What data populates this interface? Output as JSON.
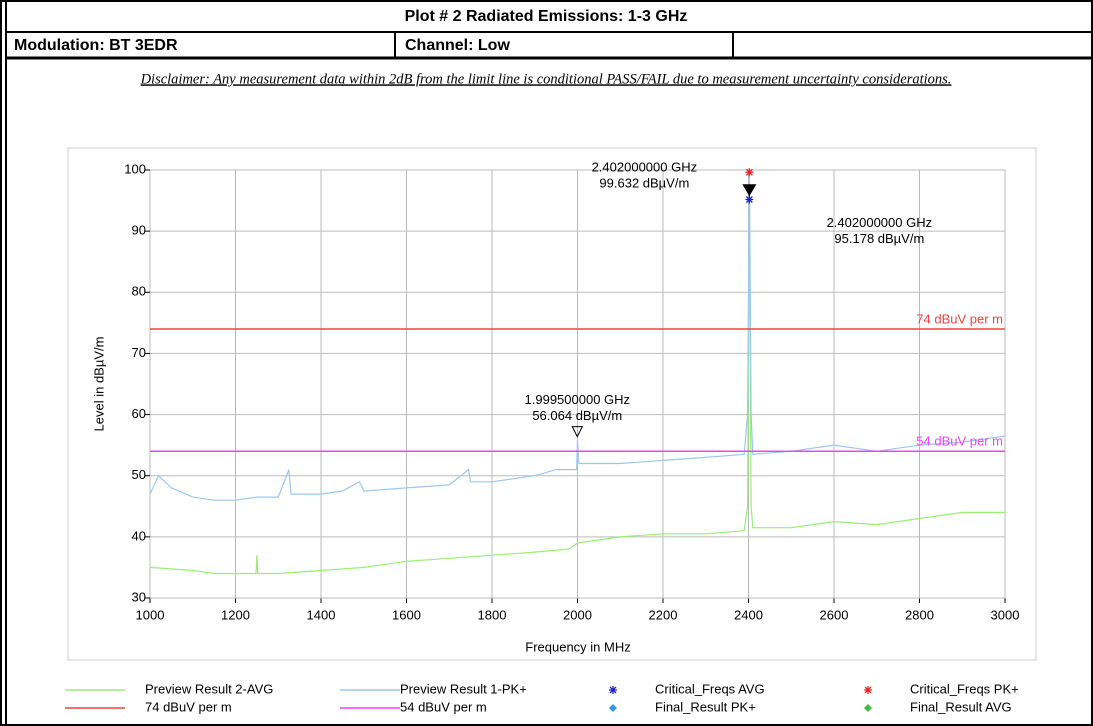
{
  "header": {
    "title": "Plot # 2 Radiated Emissions: 1-3 GHz",
    "modulation": "Modulation: BT 3EDR",
    "channel": "Channel: Low",
    "disclaimer": "Disclaimer: Any measurement data within 2dB from the limit line is conditional PASS/FAIL due to measurement uncertainty considerations."
  },
  "chart_data": {
    "type": "line",
    "x_label": "Frequency in MHz",
    "y_label": "Level in dBµV/m",
    "xlim": [
      1000,
      3000
    ],
    "xticks": [
      1000,
      1200,
      1400,
      1600,
      1800,
      2000,
      2200,
      2400,
      2600,
      2800,
      3000
    ],
    "ylim": [
      30,
      100
    ],
    "yticks": [
      30,
      40,
      50,
      60,
      70,
      80,
      90,
      100
    ],
    "grid": true,
    "legend": "bottom",
    "series": [
      {
        "name": "Preview Result 2-AVG",
        "color": "#99ee77",
        "kind": "line",
        "x": [
          1000,
          1100,
          1150,
          1200,
          1248,
          1250,
          1252,
          1300,
          1400,
          1500,
          1600,
          1700,
          1800,
          1900,
          1980,
          2000,
          2100,
          2200,
          2300,
          2390,
          2398,
          2402,
          2406,
          2410,
          2500,
          2600,
          2700,
          2800,
          2900,
          3000
        ],
        "values": [
          35,
          34.5,
          34,
          34,
          34,
          37,
          34,
          34,
          34.5,
          35,
          36,
          36.5,
          37,
          37.5,
          38,
          39,
          40,
          40.5,
          40.5,
          41,
          45,
          95.2,
          45,
          41.5,
          41.5,
          42.5,
          42,
          43,
          44,
          44
        ]
      },
      {
        "name": "Preview Result 1-PK+",
        "color": "#9cc8ee",
        "kind": "line",
        "x": [
          1000,
          1020,
          1050,
          1100,
          1150,
          1200,
          1250,
          1300,
          1325,
          1330,
          1400,
          1450,
          1490,
          1500,
          1600,
          1700,
          1745,
          1750,
          1800,
          1900,
          1950,
          1998,
          2000,
          2003,
          2100,
          2200,
          2300,
          2390,
          2398,
          2402,
          2406,
          2410,
          2500,
          2600,
          2700,
          2750,
          2800,
          2900,
          3000
        ],
        "values": [
          47,
          50,
          48,
          46.5,
          46,
          46,
          46.5,
          46.5,
          51,
          47,
          47,
          47.5,
          49,
          47.5,
          48,
          48.5,
          51,
          49,
          49,
          50,
          51,
          51,
          56,
          52,
          52,
          52.5,
          53,
          53.5,
          60,
          99.6,
          60,
          53.5,
          54,
          55,
          54,
          54.5,
          55,
          55.5,
          56.5
        ]
      },
      {
        "name": "Critical_Freqs AVG",
        "color": "#2222cc",
        "kind": "asterisk",
        "x": [
          2402
        ],
        "values": [
          95.178
        ]
      },
      {
        "name": "Critical_Freqs PK+",
        "color": "#ee2222",
        "kind": "asterisk",
        "x": [
          2402
        ],
        "values": [
          99.632
        ]
      },
      {
        "name": "74 dBuV per m",
        "color": "#ee4444",
        "kind": "limit",
        "x": [
          1000,
          3000
        ],
        "values": [
          74,
          74
        ]
      },
      {
        "name": "54 dBuV per m",
        "color": "#ee44ee",
        "kind": "limit",
        "x": [
          1000,
          3000
        ],
        "values": [
          54,
          54
        ]
      },
      {
        "name": "Final_Result PK+",
        "color": "#3399dd",
        "kind": "diamond",
        "x": [],
        "values": []
      },
      {
        "name": "Final_Result AVG",
        "color": "#44bb44",
        "kind": "diamond",
        "x": [],
        "values": []
      }
    ],
    "annotations": [
      {
        "x": 2402,
        "y": 99.632,
        "marker": "filled",
        "lines": [
          "2.402000000 GHz",
          "99.632 dBµV/m"
        ]
      },
      {
        "x": 2402,
        "y": 95.178,
        "marker": "none",
        "lines": [
          "2.402000000 GHz",
          "95.178 dBµV/m"
        ]
      },
      {
        "x": 1999.5,
        "y": 56.064,
        "marker": "open",
        "lines": [
          "1.999500000 GHz",
          "56.064 dBµV/m"
        ]
      }
    ]
  }
}
